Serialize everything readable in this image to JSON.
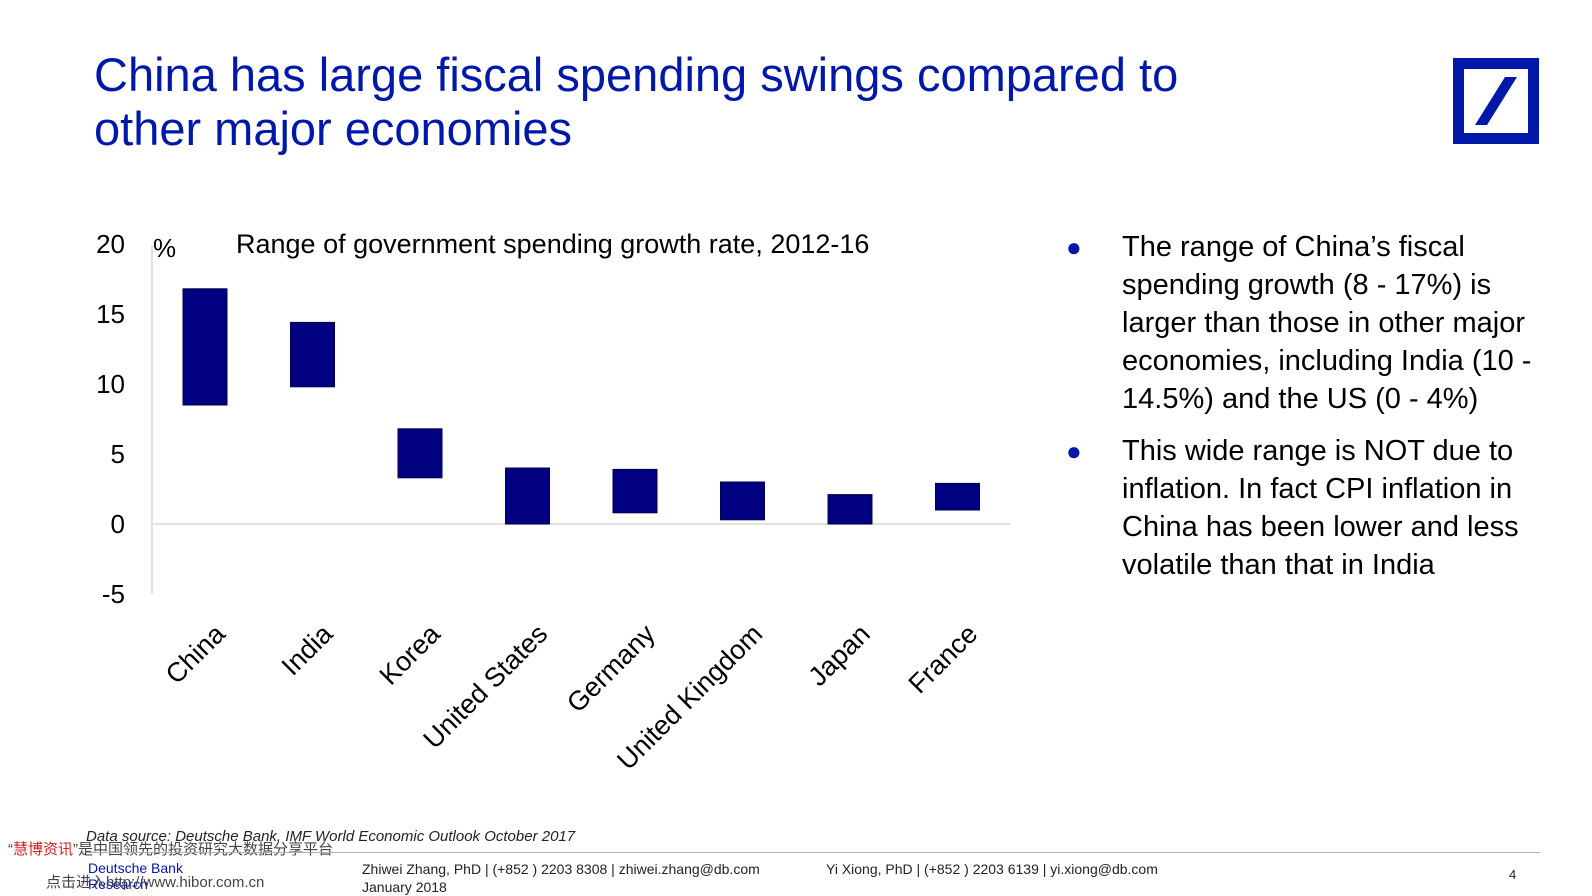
{
  "slide": {
    "title_line1": "China has large fiscal spending swings compared to",
    "title_line2": "other major economies",
    "page_number": "4"
  },
  "logo": {
    "icon": "deutsche-bank-slash-logo",
    "color": "#0018a8"
  },
  "chart_data": {
    "type": "bar",
    "subtype": "floating-range",
    "title": "Range of government spending growth rate, 2012-16",
    "ylabel": "%",
    "xlabel": "",
    "ylim": [
      -5,
      20
    ],
    "yticks": [
      20,
      15,
      10,
      5,
      0,
      -5
    ],
    "categories": [
      "China",
      "India",
      "Korea",
      "United States",
      "Germany",
      "United Kingdom",
      "Japan",
      "France"
    ],
    "series": [
      {
        "low": [
          8.5,
          9.8,
          3.3,
          0,
          0.8,
          0.3,
          0,
          1.0
        ],
        "high": [
          16.8,
          14.4,
          6.8,
          4.0,
          3.9,
          3.0,
          2.1,
          2.9
        ]
      }
    ],
    "bar_color": "#000080",
    "grid": false
  },
  "bullets": [
    "The range of China’s fiscal spending growth (8 - 17%) is larger than those in other major economies, including India (10 - 14.5%) and the US (0 - 4%)",
    "This wide range is NOT due to inflation. In fact CPI inflation in China has been lower and less volatile than that in India"
  ],
  "footer": {
    "source": "Data source: Deutsche Bank, IMF World Economic Outlook October 2017",
    "brand_line1": "Deutsche Bank",
    "brand_line2": "Research",
    "contact1_line1": "Zhiwei Zhang, PhD | (+852 ) 2203 8308 | zhiwei.zhang@db.com",
    "contact1_line2": "January 2018",
    "contact2_line1": "Yi Xiong, PhD | (+852 ) 2203 6139 | yi.xiong@db.com"
  },
  "watermark": {
    "quote_open": "“",
    "brand": "慧博资讯",
    "rest": "”是中国领先的投资研究大数据分享平台",
    "link_line": "点击进入http://www.hibor.com.cn"
  }
}
